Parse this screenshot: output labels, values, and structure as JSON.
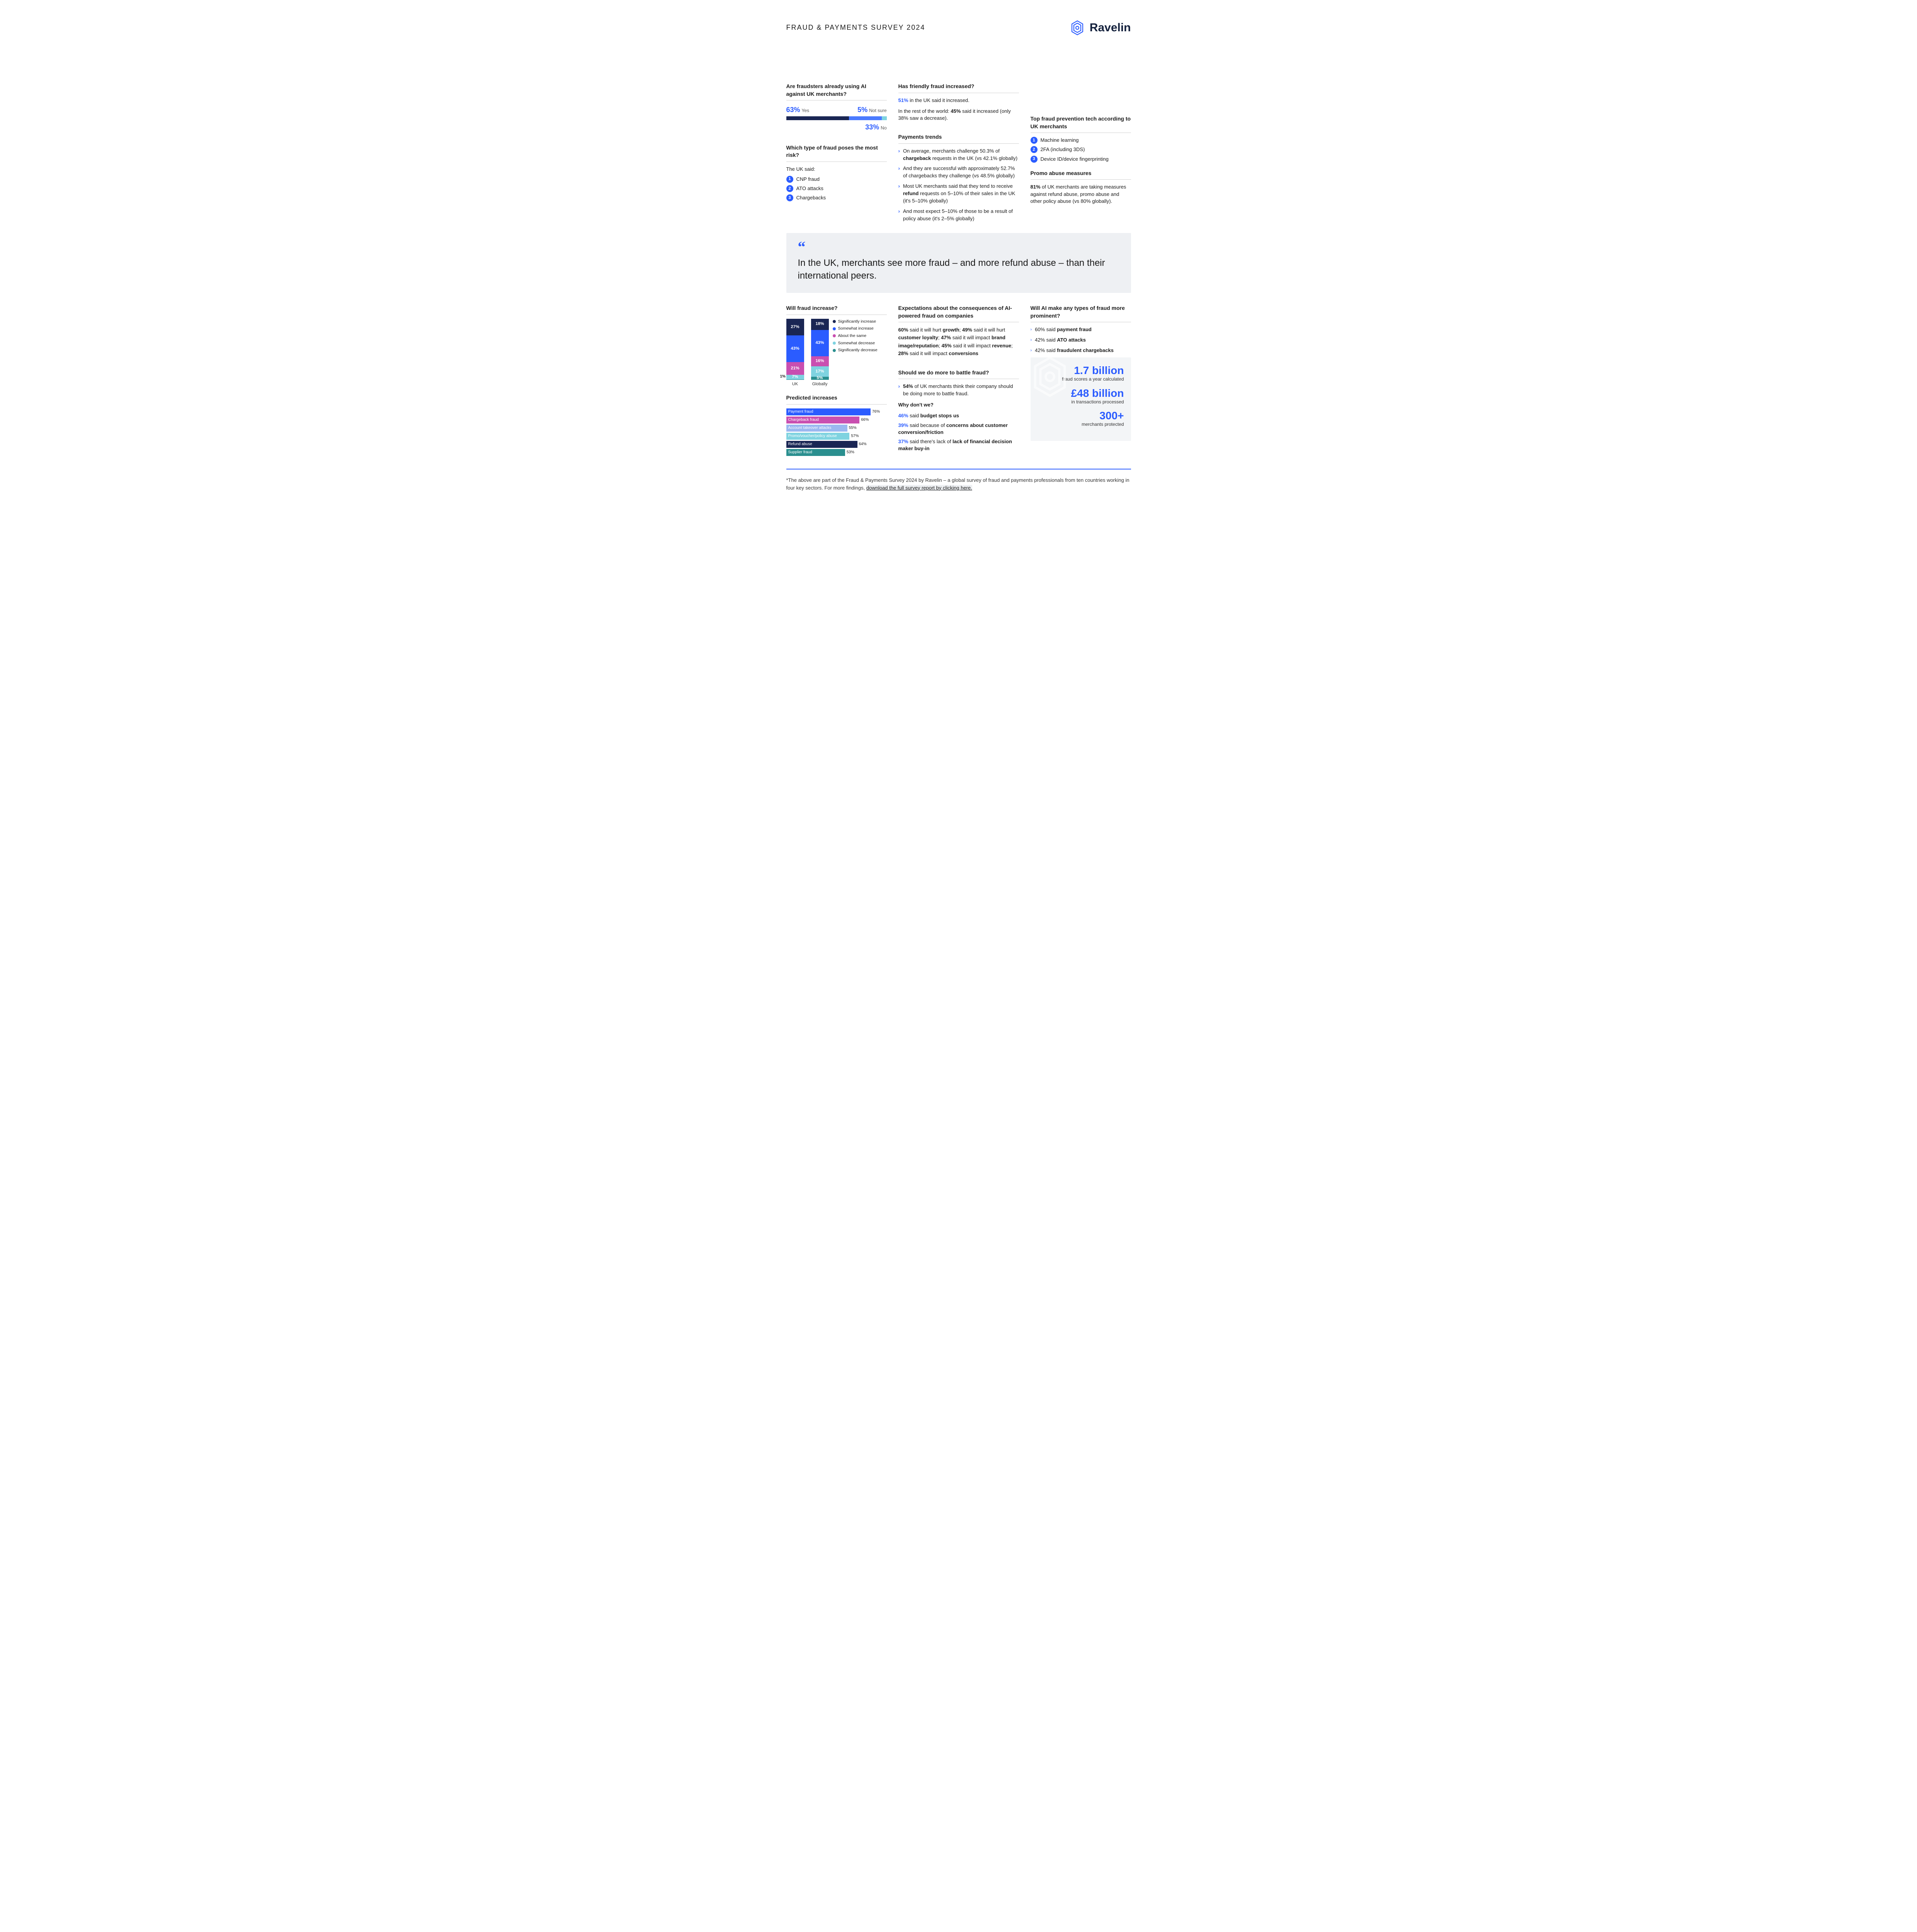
{
  "header": {
    "title": "FRAUD & PAYMENTS SURVEY 2024",
    "brand": "Ravelin",
    "brand_color": "#2b5cff",
    "brand_dark": "#14213d"
  },
  "colors": {
    "accent": "#2b5cff",
    "dark_navy": "#1a2654",
    "mid_blue": "#4b7bff",
    "cyan": "#7fd3e0",
    "magenta": "#c94fb0",
    "teal": "#2a8f8f",
    "light_blue": "#9bb8f0",
    "quote_bg": "#eef0f3",
    "stats_bg": "#f3f5f7",
    "text": "#1a1a1a"
  },
  "ai_against": {
    "title": "Are fraudsters already using AI against UK merchants?",
    "yes_pct": "63%",
    "yes_label": "Yes",
    "yes_width": 63,
    "no_pct": "33%",
    "no_label": "No",
    "no_width": 33,
    "ns_pct": "5%",
    "ns_label": "Not sure",
    "ns_width": 5,
    "yes_color": "#1a2654",
    "no_color": "#4b7bff",
    "ns_color": "#7fd3e0"
  },
  "risk": {
    "title": "Which type of fraud poses the most risk?",
    "subtitle": "The UK said:",
    "items": [
      "CNP fraud",
      "ATO attacks",
      "Chargebacks"
    ]
  },
  "friendly": {
    "title": "Has friendly fraud increased?",
    "line1_pct": "51%",
    "line1_rest": " in the UK said it increased.",
    "line2_pre": "In the rest of the world:  ",
    "line2_pct": "45%",
    "line2_rest": " said it increased (only 38% saw a decrease)."
  },
  "trends": {
    "title": "Payments trends",
    "items": [
      {
        "pre": "On average, merchants challenge 50.3% of ",
        "b": "chargeback",
        "post": " requests in the UK (vs 42.1% globally)"
      },
      {
        "pre": "And they are successful with approximately 52.7% of chargebacks they challenge (vs 48.5% globally)",
        "b": "",
        "post": ""
      },
      {
        "pre": "Most UK merchants said that they tend to receive ",
        "b": "refund",
        "post": " requests on 5–10% of their sales in the UK (it's 5–10% globally)"
      },
      {
        "pre": "And most expect 5–10% of those to be a result of policy abuse (it's 2–5% globally)",
        "b": "",
        "post": ""
      }
    ]
  },
  "toptech": {
    "title": "Top fraud prevention tech according to UK merchants",
    "items": [
      "Machine learning",
      "2FA (including 3DS)",
      "Device ID/device fingerprinting"
    ]
  },
  "promo": {
    "title": "Promo abuse measures",
    "pct": "81%",
    "text": " of UK merchants are taking measures against refund abuse, promo abuse and other policy abuse (vs 80% globally)."
  },
  "quote": {
    "text": "In the UK, merchants see more fraud – and more refund abuse – than their international peers."
  },
  "increase": {
    "title": "Will fraud increase?",
    "legend": [
      {
        "label": "Significantly increase",
        "color": "#1a2654"
      },
      {
        "label": "Somewhat increase",
        "color": "#2b5cff"
      },
      {
        "label": "About the same",
        "color": "#c94fb0"
      },
      {
        "label": "Somewhat decrease",
        "color": "#7fd3e0"
      },
      {
        "label": "Significantly decrease",
        "color": "#2a8f8f"
      }
    ],
    "bars": [
      {
        "label": "UK",
        "segs": [
          {
            "v": "27%",
            "h": 27,
            "c": "#1a2654"
          },
          {
            "v": "43%",
            "h": 43,
            "c": "#2b5cff"
          },
          {
            "v": "21%",
            "h": 21,
            "c": "#c94fb0"
          },
          {
            "v": "7%",
            "h": 7,
            "c": "#7fd3e0"
          },
          {
            "v": "",
            "h": 1,
            "c": "#2a8f8f"
          }
        ],
        "outside": "1%"
      },
      {
        "label": "Globally",
        "segs": [
          {
            "v": "18%",
            "h": 18,
            "c": "#1a2654"
          },
          {
            "v": "43%",
            "h": 43,
            "c": "#2b5cff"
          },
          {
            "v": "16%",
            "h": 16,
            "c": "#c94fb0"
          },
          {
            "v": "17%",
            "h": 17,
            "c": "#7fd3e0"
          },
          {
            "v": "5%",
            "h": 5,
            "c": "#2a8f8f"
          }
        ]
      }
    ],
    "total_height": 160
  },
  "predicted": {
    "title": "Predicted increases",
    "max": 80,
    "bars": [
      {
        "label": "Payment fraud",
        "pct": "76%",
        "w": 76,
        "c": "#2b5cff"
      },
      {
        "label": "Chargeback fraud",
        "pct": "66%",
        "w": 66,
        "c": "#c94fb0"
      },
      {
        "label": "Account takeover attacks",
        "pct": "55%",
        "w": 55,
        "c": "#9bb8f0"
      },
      {
        "label": "Promo/voucher/policy abuse",
        "pct": "57%",
        "w": 57,
        "c": "#7fd3e0"
      },
      {
        "label": "Refund abuse",
        "pct": "64%",
        "w": 64,
        "c": "#1a2654"
      },
      {
        "label": "Supplier fraud",
        "pct": "53%",
        "w": 53,
        "c": "#2a8f8f"
      }
    ]
  },
  "expectations": {
    "title": "Expectations about the consequences of AI-powered fraud on companies",
    "parts": [
      {
        "pct": "60%",
        "txt": " said it will hurt ",
        "b": "growth"
      },
      {
        "pct": "49%",
        "txt": " said it will hurt ",
        "b": "customer loyalty"
      },
      {
        "pct": "47%",
        "txt": " said it will impact ",
        "b": "brand image/reputation"
      },
      {
        "pct": "45%",
        "txt": " said it will impact ",
        "b": "revenue"
      },
      {
        "pct": "28%",
        "txt": " said it will impact ",
        "b": "conversions"
      }
    ]
  },
  "domore": {
    "title": "Should we do more to battle fraud?",
    "lead_pct": "54%",
    "lead_text": " of UK merchants think their company should be doing more to battle fraud.",
    "why_title": "Why don't we?",
    "reasons": [
      {
        "pct": "46%",
        "txt": " said ",
        "b": "budget stops us"
      },
      {
        "pct": "39%",
        "txt": " said because of ",
        "b": "concerns about customer conversion/friction"
      },
      {
        "pct": "37%",
        "txt": " said there's lack of ",
        "b": "lack of financial decision maker buy-in"
      }
    ]
  },
  "ai_prominent": {
    "title": "Will AI make any types of fraud more prominent?",
    "items": [
      {
        "pct": "60%",
        "txt": " said ",
        "b": "payment fraud"
      },
      {
        "pct": "42%",
        "txt": " said ",
        "b": "ATO attacks"
      },
      {
        "pct": "42%",
        "txt": " said ",
        "b": "fraudulent chargebacks"
      }
    ]
  },
  "stats": {
    "items": [
      {
        "big": "1.7 billion",
        "sub": "fraud scores a year calculated"
      },
      {
        "big": "£48 billion",
        "sub": "in transactions processed"
      },
      {
        "big": "300+",
        "sub": "merchants protected"
      }
    ]
  },
  "footnote": {
    "pre": "*The above are part of the Fraud & Payments Survey 2024 by Ravelin – a global survey of fraud and payments professionals from ten countries working in four key sectors. For more findings,  ",
    "link": "download the full survey report by clicking here."
  }
}
